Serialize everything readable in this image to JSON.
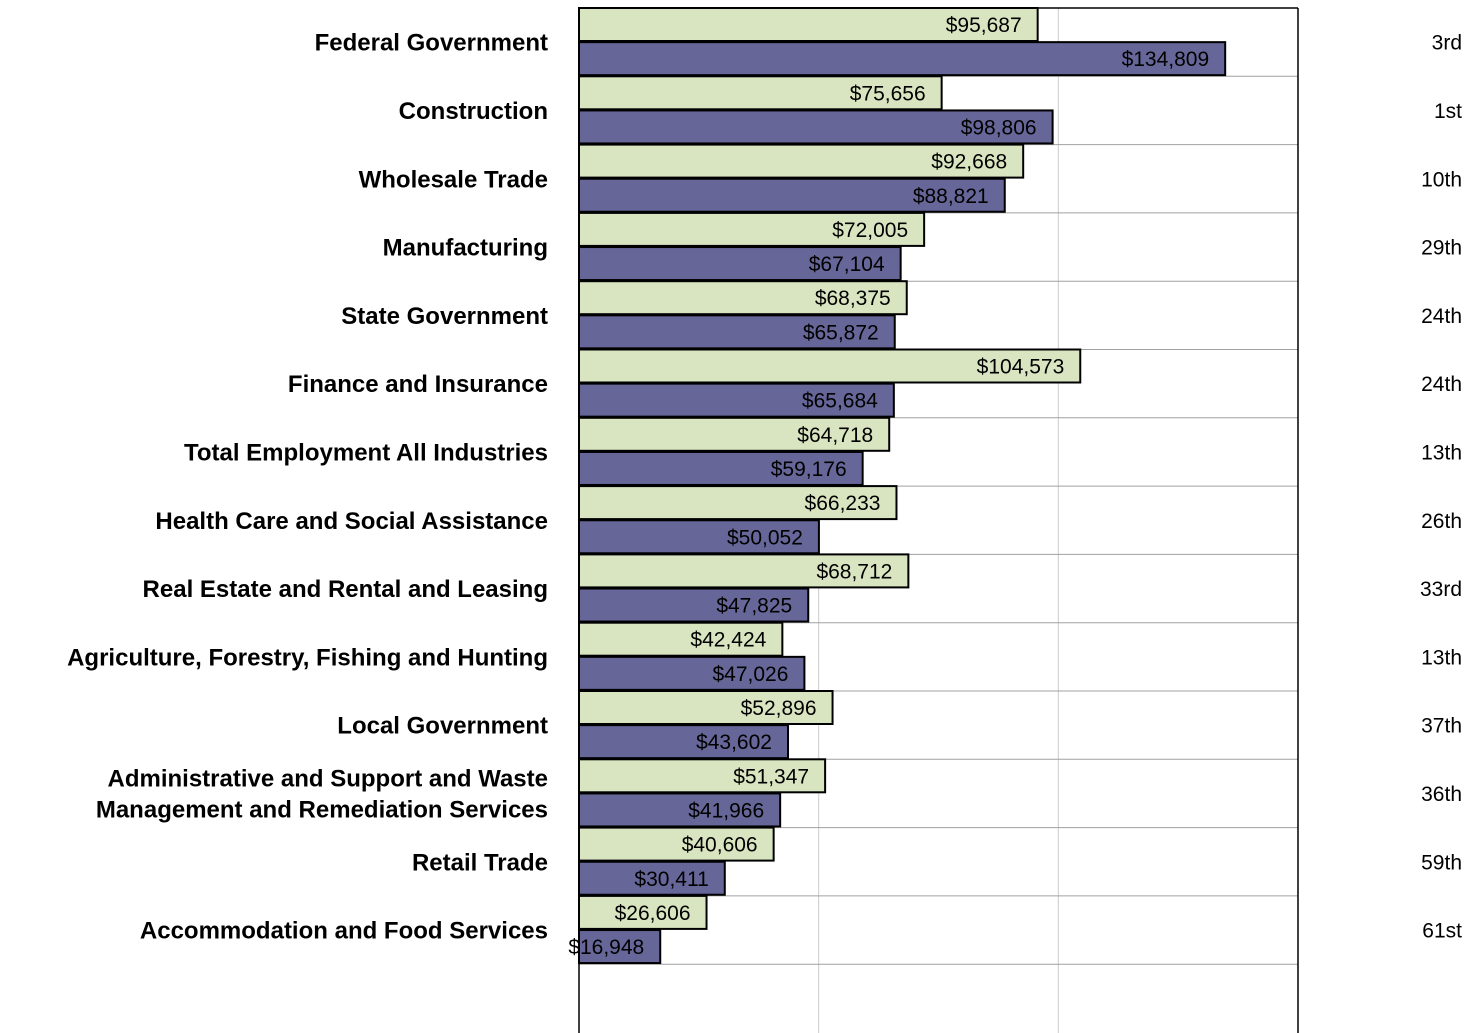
{
  "chart_data": {
    "type": "bar",
    "orientation": "horizontal",
    "title": "",
    "xlabel": "",
    "ylabel": "",
    "xlim": [
      0,
      150000
    ],
    "grid": true,
    "legend": "none",
    "categories": [
      [
        "Federal Government"
      ],
      [
        "Construction"
      ],
      [
        "Wholesale Trade"
      ],
      [
        "Manufacturing"
      ],
      [
        "State Government"
      ],
      [
        "Finance and Insurance"
      ],
      [
        "Total Employment All Industries"
      ],
      [
        "Health Care and Social Assistance"
      ],
      [
        "Real Estate and Rental and Leasing"
      ],
      [
        "Agriculture, Forestry, Fishing and Hunting"
      ],
      [
        "Local Government"
      ],
      [
        "Administrative and Support and Waste",
        "Management and Remediation Services"
      ],
      [
        "Retail Trade"
      ],
      [
        "Accommodation and Food Services"
      ]
    ],
    "series": [
      {
        "color": "#d9e5c0",
        "values": [
          95687,
          75656,
          92668,
          72005,
          68375,
          104573,
          64718,
          66233,
          68712,
          42424,
          52896,
          51347,
          40606,
          26606
        ],
        "labels": [
          "$95,687",
          "$75,656",
          "$92,668",
          "$72,005",
          "$68,375",
          "$104,573",
          "$64,718",
          "$66,233",
          "$68,712",
          "$42,424",
          "$52,896",
          "$51,347",
          "$40,606",
          "$26,606"
        ]
      },
      {
        "color": "#666699",
        "values": [
          134809,
          98806,
          88821,
          67104,
          65872,
          65684,
          59176,
          50052,
          47825,
          47026,
          43602,
          41966,
          30411,
          16948
        ],
        "labels": [
          "$134,809",
          "$98,806",
          "$88,821",
          "$67,104",
          "$65,872",
          "$65,684",
          "$59,176",
          "$50,052",
          "$47,825",
          "$47,026",
          "$43,602",
          "$41,966",
          "$30,411",
          "$16,948"
        ]
      }
    ],
    "ranks": [
      "3rd",
      "1st",
      "10th",
      "29th",
      "24th",
      "24th",
      "13th",
      "26th",
      "33rd",
      "13th",
      "37th",
      "36th",
      "59th",
      "61st"
    ]
  }
}
